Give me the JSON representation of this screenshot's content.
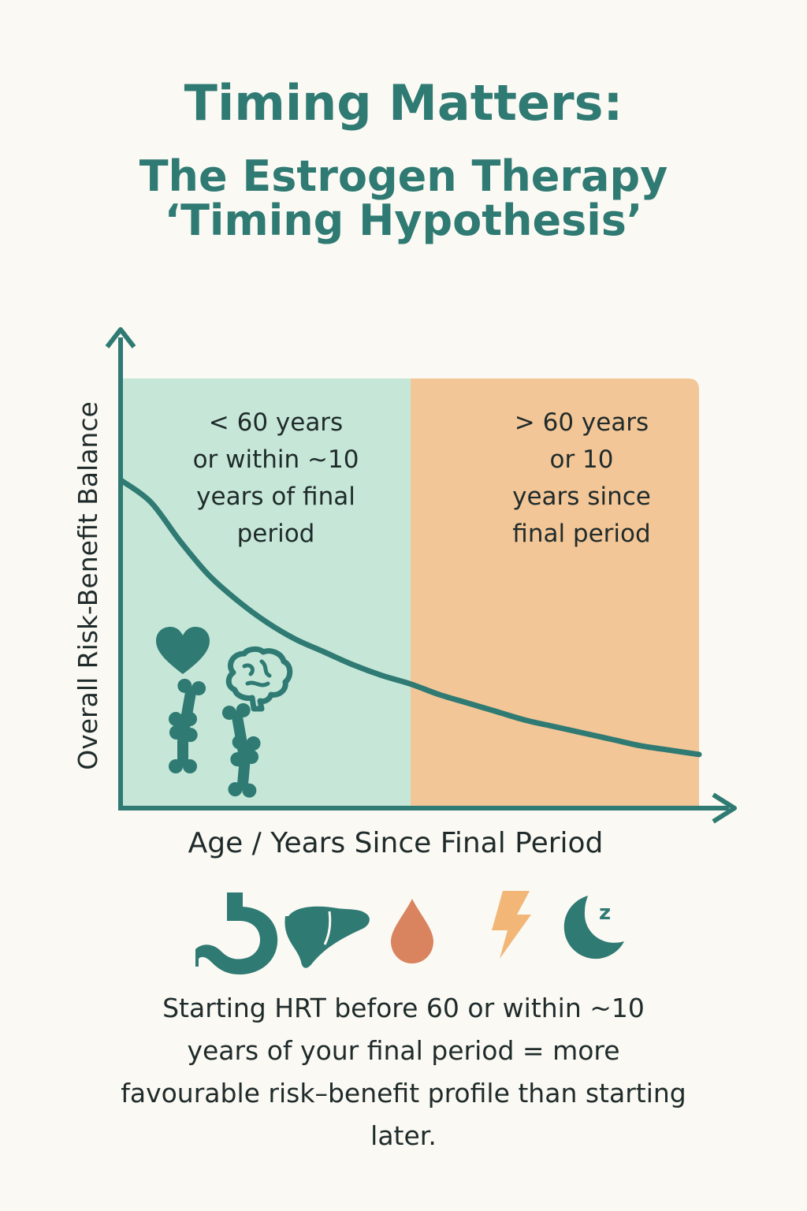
{
  "title": "Timing Matters:",
  "subtitle_line1": "The Estrogen Therapy",
  "subtitle_line2": "‘Timing Hypothesis’",
  "colors": {
    "teal": "#2f7a73",
    "mint_zone": "#c6e7d8",
    "peach_zone": "#f3c697",
    "drop": "#d9835f",
    "lightning": "#f2b677"
  },
  "chart_data": {
    "type": "line",
    "xlabel": "Age / Years Since Final Period",
    "ylabel": "Overall Risk-Benefit Balance",
    "xlim": [
      0,
      10
    ],
    "ylim": [
      0,
      10
    ],
    "zones": [
      {
        "label_lines": [
          "< 60 years",
          "or within ~10",
          "years of final",
          "period"
        ],
        "x_start": 0,
        "x_end": 5,
        "color": "#c6e7d8"
      },
      {
        "label_lines": [
          "> 60 years",
          "or 10",
          "years since",
          "final period"
        ],
        "x_start": 5,
        "x_end": 10,
        "color": "#f3c697"
      }
    ],
    "series": [
      {
        "x": [
          0,
          0.5,
          1,
          1.5,
          2,
          2.5,
          3,
          3.5,
          4,
          4.5,
          5,
          5.5,
          6,
          6.5,
          7,
          7.5,
          8,
          8.5,
          9,
          9.5,
          10
        ],
        "y": [
          7.6,
          7.1,
          6.2,
          5.4,
          4.8,
          4.3,
          3.9,
          3.6,
          3.3,
          3.05,
          2.85,
          2.6,
          2.4,
          2.2,
          2.0,
          1.85,
          1.7,
          1.55,
          1.4,
          1.3,
          1.2
        ]
      }
    ],
    "zone_icons": [
      "heart-icon",
      "brain-icon",
      "bone-icon",
      "bone-icon",
      "bone-icon"
    ]
  },
  "bottom_icons": [
    "stomach-icon",
    "liver-icon",
    "drop-icon",
    "lightning-icon",
    "moon-sleep-icon"
  ],
  "sleep_letter": "z",
  "caption_lines": [
    "Starting HRT before 60 or within ~10",
    "years of your final period = more",
    "favourable risk–benefit profile than starting",
    "later."
  ]
}
